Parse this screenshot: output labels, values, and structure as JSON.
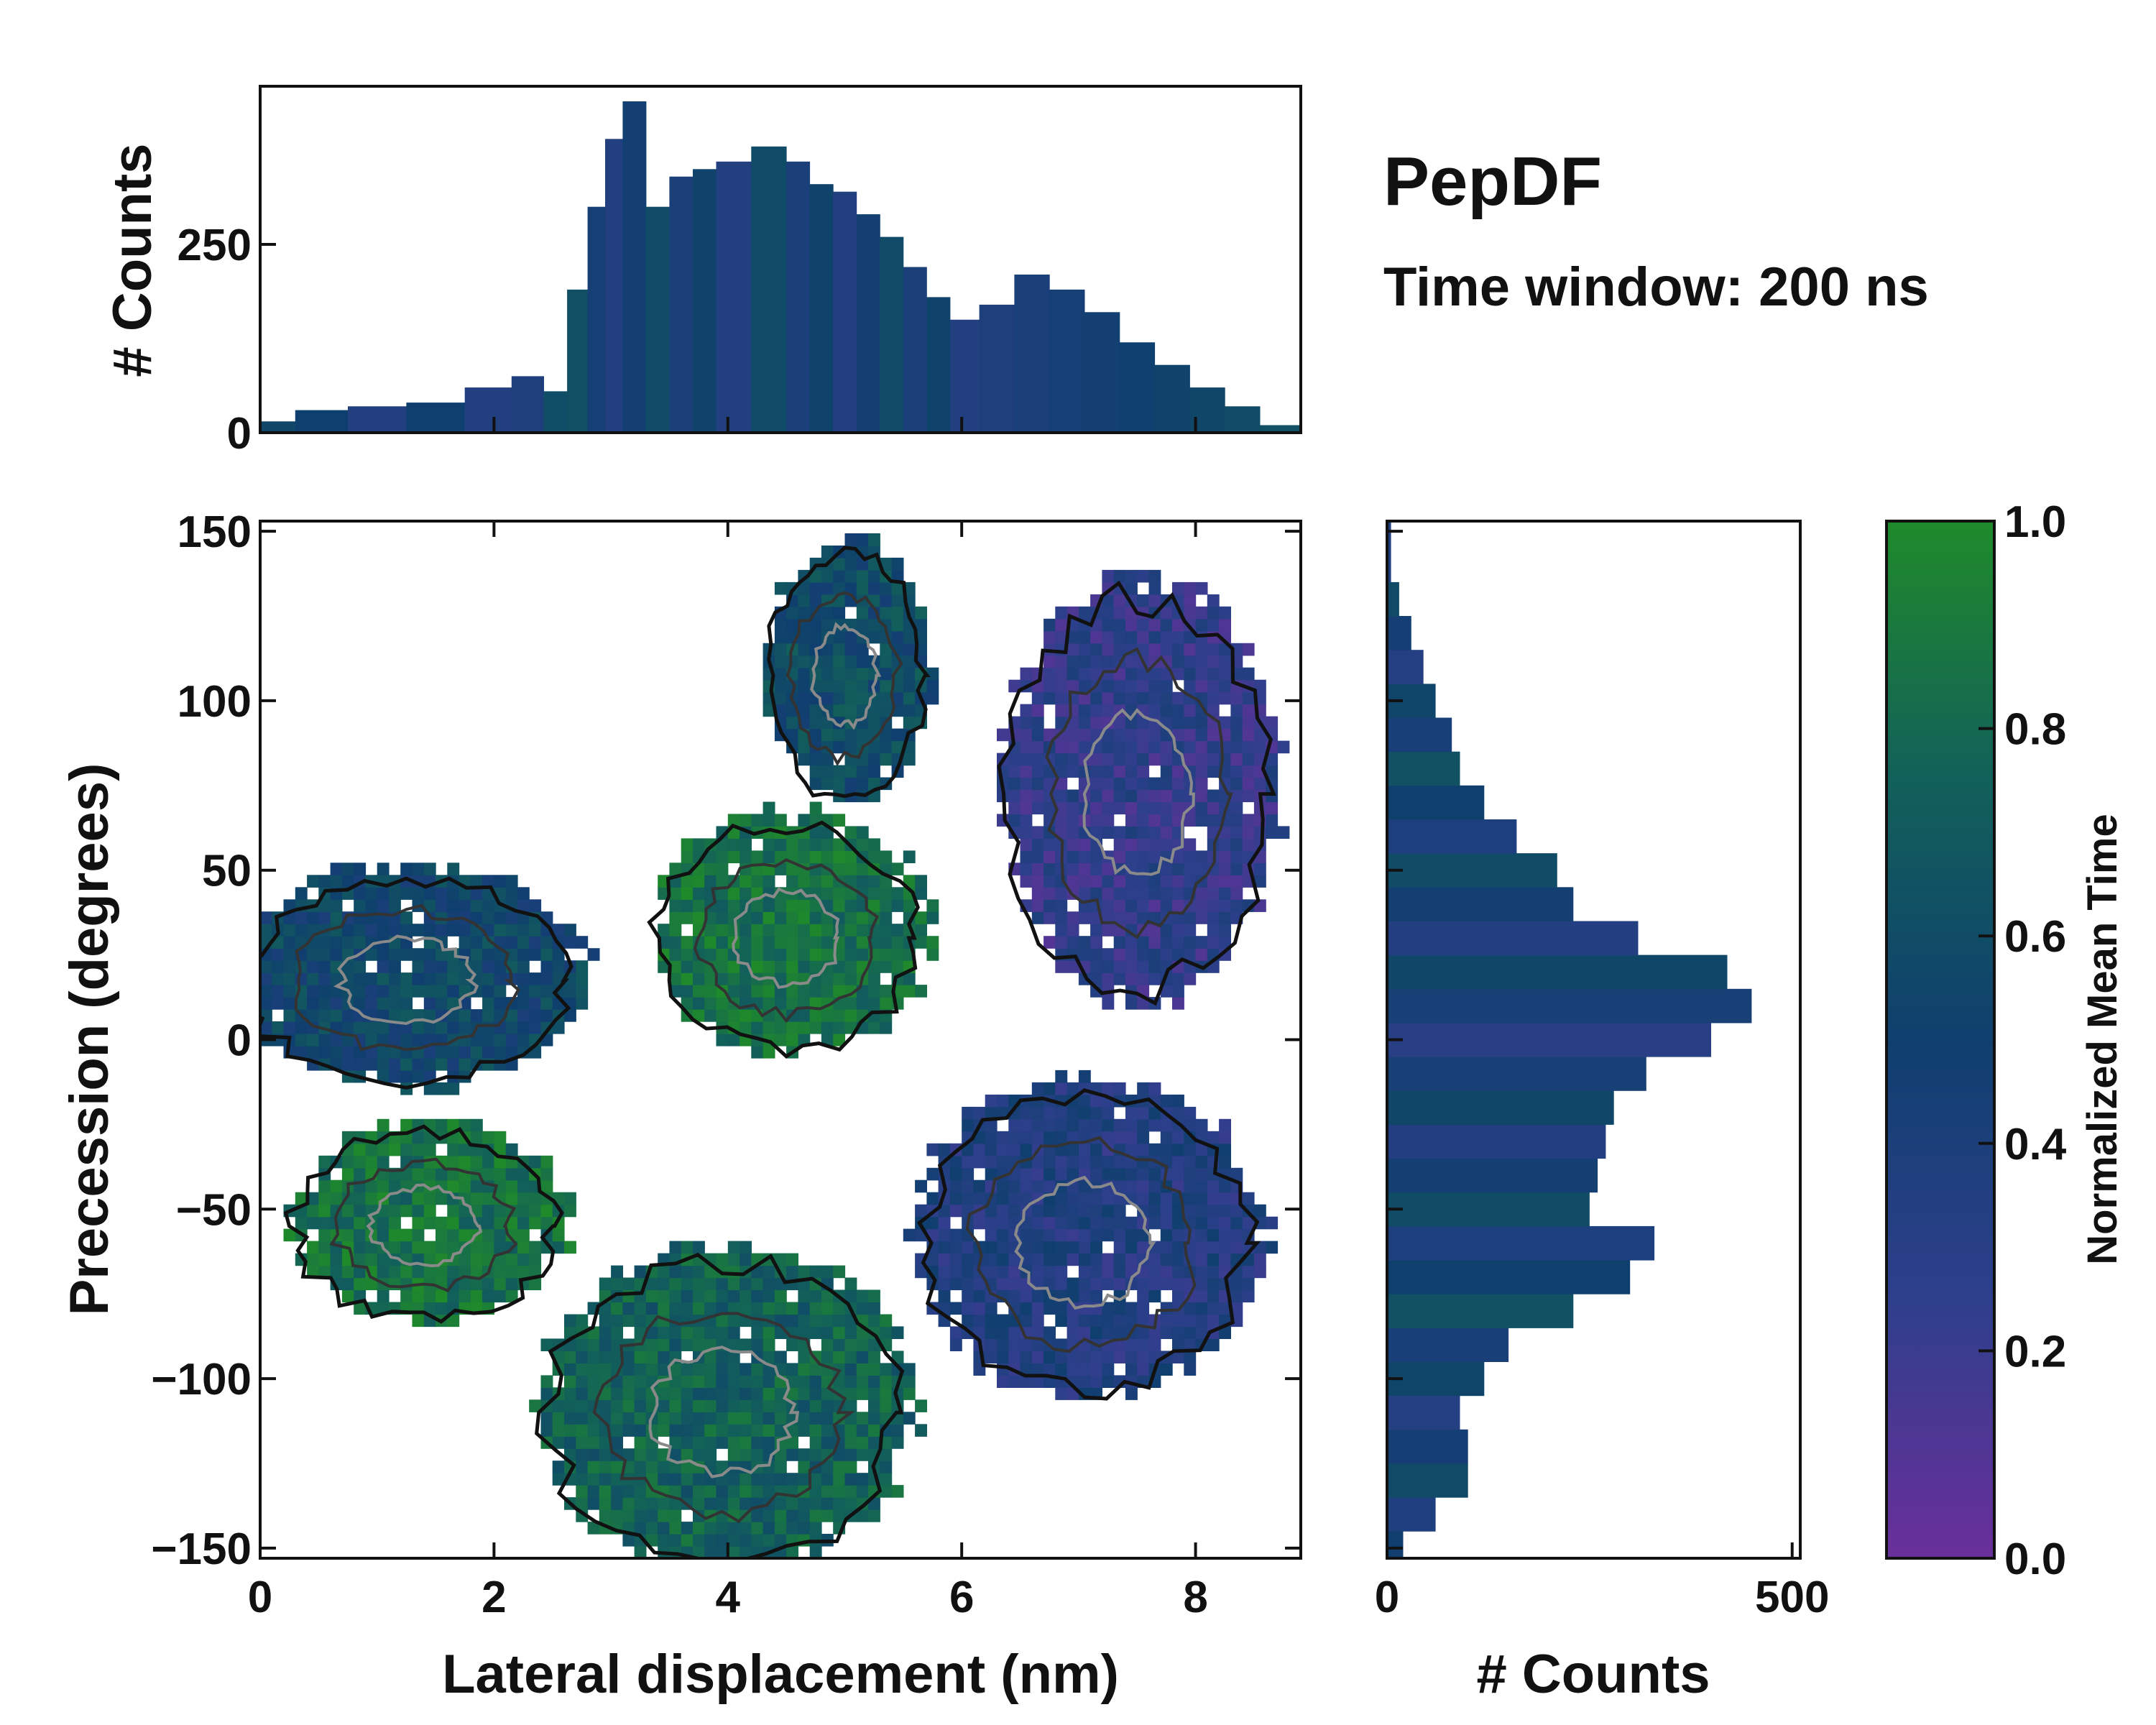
{
  "chart_data": {
    "type": "joint-heatmap",
    "title": "PepDF",
    "subtitle": "Time window: 200 ns",
    "main": {
      "type": "heatmap",
      "xlabel": "Lateral displacement (nm)",
      "ylabel": "Precession (degrees)",
      "xlim": [
        0,
        8.9
      ],
      "ylim": [
        -153,
        153
      ],
      "xticks": [
        0,
        2,
        4,
        6,
        8
      ],
      "xtick_labels": [
        "0",
        "2",
        "4",
        "6",
        "8"
      ],
      "yticks": [
        150,
        100,
        50,
        0,
        -50,
        -100,
        -150
      ],
      "ytick_labels": [
        "150",
        "100",
        "50",
        "0",
        "−50",
        "−100",
        "−150"
      ],
      "regions": [
        {
          "name": "upper-teal-lobe",
          "x": [
            4.4,
            5.6
          ],
          "y": [
            75,
            140
          ],
          "value": 0.6
        },
        {
          "name": "upper-right-purple-lobe",
          "x": [
            6.5,
            8.5
          ],
          "y": [
            20,
            125
          ],
          "value": 0.25
        },
        {
          "name": "central-green-core",
          "x": [
            3.5,
            5.5
          ],
          "y": [
            0,
            60
          ],
          "value": 0.85
        },
        {
          "name": "left-arm",
          "x": [
            0.0,
            2.5
          ],
          "y": [
            -10,
            45
          ],
          "value": 0.55
        },
        {
          "name": "lower-left-green-island",
          "x": [
            0.4,
            2.4
          ],
          "y": [
            -80,
            -30
          ],
          "value": 0.85
        },
        {
          "name": "bottom-lobe",
          "x": [
            2.6,
            5.3
          ],
          "y": [
            -150,
            -70
          ],
          "value": 0.75
        },
        {
          "name": "right-lower-lobe",
          "x": [
            5.8,
            8.3
          ],
          "y": [
            -100,
            -20
          ],
          "value": 0.35
        }
      ]
    },
    "top_histogram": {
      "type": "bar",
      "ylabel": "# Counts",
      "yticks": [
        0,
        250
      ],
      "ytick_labels": [
        "0",
        "250"
      ],
      "ylim": [
        0,
        460
      ],
      "x": [
        0.1,
        0.5,
        1.0,
        1.5,
        2.0,
        2.3,
        2.55,
        2.7,
        2.9,
        3.0,
        3.2,
        3.4,
        3.6,
        3.8,
        4.0,
        4.4,
        4.6,
        4.8,
        5.0,
        5.2,
        5.4,
        5.6,
        5.8,
        6.0,
        6.3,
        6.6,
        6.9,
        7.2,
        7.5,
        7.8,
        8.1,
        8.4,
        8.7
      ],
      "values": [
        15,
        30,
        35,
        40,
        60,
        75,
        55,
        190,
        300,
        390,
        440,
        300,
        340,
        350,
        360,
        380,
        360,
        330,
        320,
        290,
        260,
        220,
        180,
        150,
        170,
        210,
        190,
        160,
        120,
        90,
        60,
        35,
        10
      ]
    },
    "right_histogram": {
      "type": "barh",
      "xlabel": "# Counts",
      "xticks": [
        0,
        500
      ],
      "xtick_labels": [
        "0",
        "500"
      ],
      "xlim": [
        0,
        510
      ],
      "y": [
        -150,
        -140,
        -130,
        -120,
        -110,
        -100,
        -90,
        -80,
        -70,
        -60,
        -50,
        -40,
        -30,
        -20,
        -10,
        0,
        10,
        20,
        30,
        40,
        50,
        60,
        70,
        80,
        90,
        100,
        110,
        120,
        130,
        140
      ],
      "values": [
        20,
        60,
        100,
        100,
        90,
        120,
        150,
        230,
        300,
        330,
        250,
        260,
        270,
        280,
        320,
        400,
        450,
        420,
        310,
        230,
        210,
        160,
        120,
        90,
        80,
        60,
        45,
        30,
        15,
        5
      ]
    },
    "colorbar": {
      "label": "Normalized Mean Time",
      "range": [
        0.0,
        1.0
      ],
      "ticks": [
        0.0,
        0.2,
        0.4,
        0.6,
        0.8,
        1.0
      ],
      "tick_labels": [
        "0.0",
        "0.2",
        "0.4",
        "0.6",
        "0.8",
        "1.0"
      ],
      "colors": [
        "#6a2f9a",
        "#2e3f8c",
        "#0f3f6e",
        "#12605a",
        "#1f8a2a"
      ]
    }
  }
}
